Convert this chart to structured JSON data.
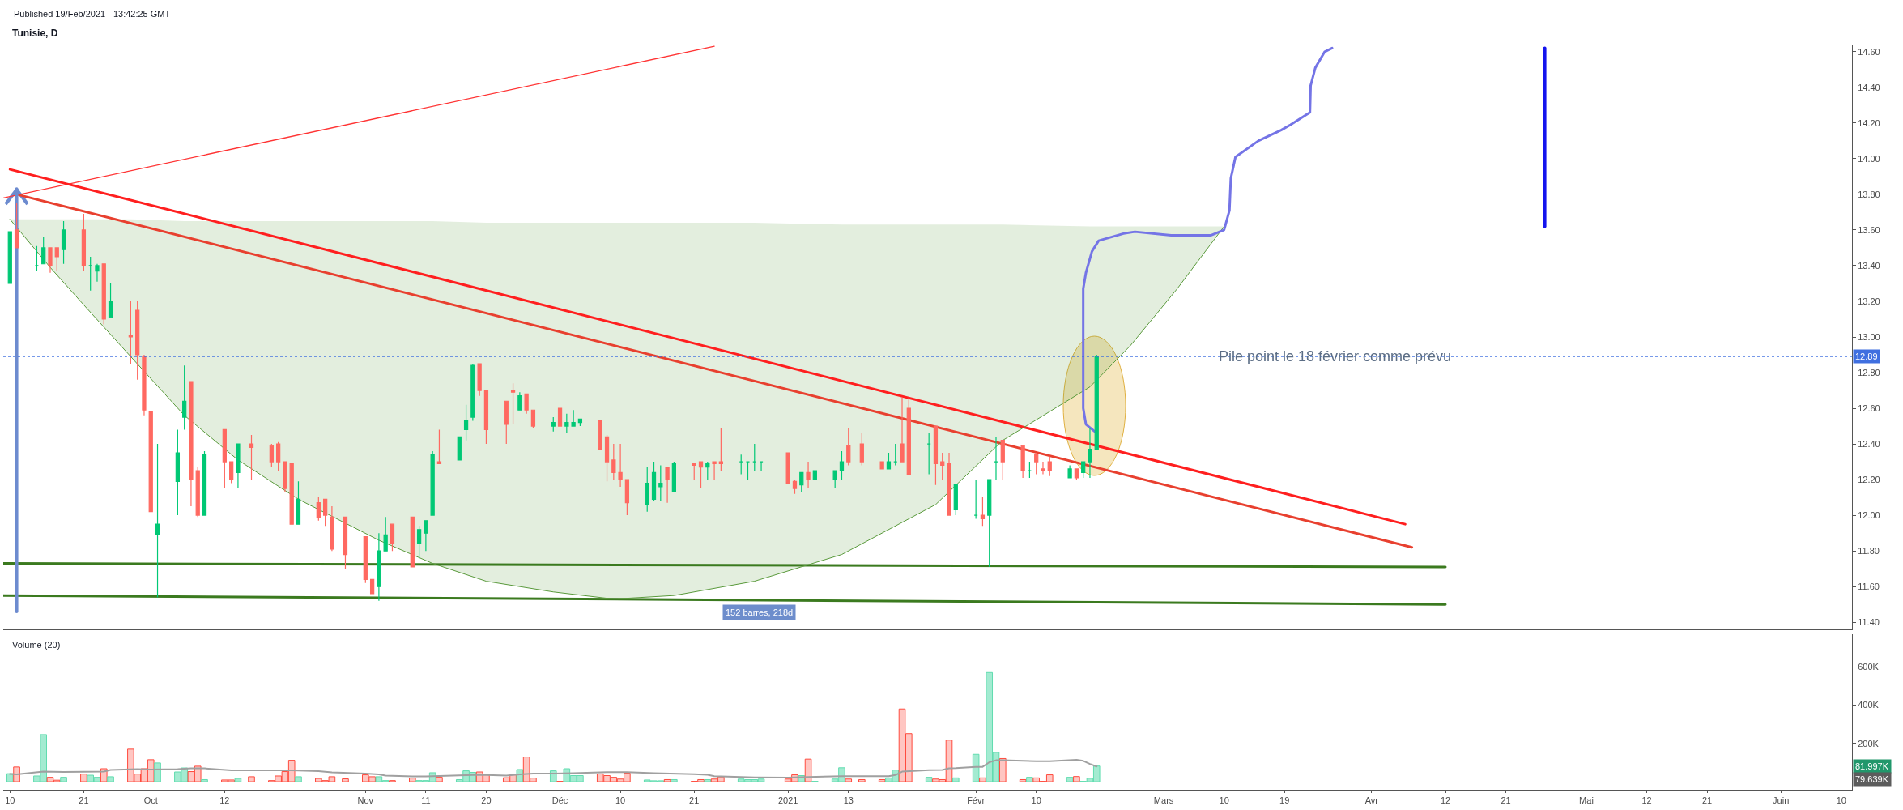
{
  "chart_data": [
    {
      "type": "candlestick",
      "title": "Tunisie, D",
      "x": [
        "2020-09-10",
        "2020-09-11",
        "2020-09-14",
        "2020-09-15",
        "2020-09-16",
        "2020-09-17",
        "2020-09-18",
        "2020-09-21",
        "2020-09-22",
        "2020-09-23",
        "2020-09-24",
        "2020-09-25",
        "2020-09-28",
        "2020-09-29",
        "2020-09-30",
        "2020-10-01",
        "2020-10-02",
        "2020-10-05",
        "2020-10-06",
        "2020-10-07",
        "2020-10-08",
        "2020-10-09",
        "2020-10-12",
        "2020-10-13",
        "2020-10-14",
        "2020-10-16",
        "2020-10-19",
        "2020-10-20",
        "2020-10-21",
        "2020-10-22",
        "2020-10-23",
        "2020-10-26",
        "2020-10-27",
        "2020-10-28",
        "2020-10-30",
        "2020-11-02",
        "2020-11-03",
        "2020-11-04",
        "2020-11-05",
        "2020-11-06",
        "2020-11-09",
        "2020-11-10",
        "2020-11-11",
        "2020-11-12",
        "2020-11-13",
        "2020-11-16",
        "2020-11-17",
        "2020-11-18",
        "2020-11-19",
        "2020-11-20",
        "2020-11-23",
        "2020-11-24",
        "2020-11-25",
        "2020-11-26",
        "2020-11-27",
        "2020-11-30",
        "2020-12-01",
        "2020-12-02",
        "2020-12-03",
        "2020-12-04",
        "2020-12-07",
        "2020-12-08",
        "2020-12-09",
        "2020-12-10",
        "2020-12-11",
        "2020-12-14",
        "2020-12-15",
        "2020-12-16",
        "2020-12-17",
        "2020-12-18",
        "2020-12-21",
        "2020-12-22",
        "2020-12-23",
        "2020-12-24",
        "2020-12-25",
        "2020-12-28",
        "2020-12-29",
        "2020-12-30",
        "2020-12-31",
        "2021-01-04",
        "2021-01-05",
        "2021-01-06",
        "2021-01-07",
        "2021-01-08",
        "2021-01-11",
        "2021-01-12",
        "2021-01-13",
        "2021-01-15",
        "2021-01-18",
        "2021-01-19",
        "2021-01-20",
        "2021-01-21",
        "2021-01-22",
        "2021-01-25",
        "2021-01-26",
        "2021-01-27",
        "2021-01-28",
        "2021-01-29",
        "2021-02-01",
        "2021-02-02",
        "2021-02-03",
        "2021-02-04",
        "2021-02-05",
        "2021-02-08",
        "2021-02-09",
        "2021-02-10",
        "2021-02-11",
        "2021-02-12",
        "2021-02-15",
        "2021-02-16",
        "2021-02-17",
        "2021-02-18",
        "2021-02-19"
      ],
      "ohlc": [
        [
          13.3,
          13.59,
          13.3,
          13.59
        ],
        [
          13.6,
          13.75,
          13.5,
          13.5
        ],
        [
          13.4,
          13.51,
          13.37,
          13.4
        ],
        [
          13.41,
          13.56,
          13.41,
          13.5
        ],
        [
          13.5,
          13.5,
          13.36,
          13.4
        ],
        [
          13.5,
          13.5,
          13.37,
          13.45
        ],
        [
          13.49,
          13.65,
          13.41,
          13.6
        ],
        [
          13.6,
          13.69,
          13.37,
          13.4
        ],
        [
          13.4,
          13.45,
          13.26,
          13.4
        ],
        [
          13.37,
          13.41,
          13.31,
          13.4
        ],
        [
          13.41,
          13.41,
          13.07,
          13.1
        ],
        [
          13.11,
          13.3,
          13.11,
          13.2
        ],
        [
          13.01,
          13.2,
          12.85,
          13.0
        ],
        [
          13.15,
          13.2,
          12.76,
          12.9
        ],
        [
          12.89,
          12.9,
          12.56,
          12.59
        ],
        [
          12.58,
          12.58,
          12.02,
          12.02
        ],
        [
          11.89,
          12.4,
          11.54,
          11.95
        ],
        [
          12.19,
          12.48,
          12.0,
          12.35
        ],
        [
          12.55,
          12.84,
          12.48,
          12.64
        ],
        [
          12.75,
          12.75,
          12.05,
          12.2
        ],
        [
          12.25,
          12.27,
          11.99,
          12.0
        ],
        [
          12.0,
          12.36,
          12.0,
          12.34
        ],
        [
          12.48,
          12.48,
          12.15,
          12.3
        ],
        [
          12.3,
          12.3,
          12.18,
          12.2
        ],
        [
          12.24,
          12.4,
          12.15,
          12.4
        ],
        [
          12.4,
          12.45,
          12.2,
          12.38
        ],
        [
          12.39,
          12.4,
          12.27,
          12.3
        ],
        [
          12.4,
          12.41,
          12.25,
          12.3
        ],
        [
          12.3,
          12.3,
          12.13,
          12.15
        ],
        [
          12.29,
          12.29,
          11.95,
          11.95
        ],
        [
          11.95,
          12.19,
          11.95,
          12.09
        ],
        [
          12.07,
          12.1,
          11.97,
          11.99
        ],
        [
          12.09,
          12.09,
          11.94,
          12.0
        ],
        [
          11.99,
          12.05,
          11.8,
          11.81
        ],
        [
          11.99,
          11.99,
          11.7,
          11.78
        ],
        [
          11.88,
          11.88,
          11.62,
          11.64
        ],
        [
          11.64,
          11.64,
          11.56,
          11.56
        ],
        [
          11.6,
          11.9,
          11.52,
          11.8
        ],
        [
          11.8,
          11.99,
          11.8,
          11.89
        ],
        [
          11.95,
          11.95,
          11.8,
          11.84
        ],
        [
          11.99,
          11.99,
          11.71,
          11.71
        ],
        [
          11.84,
          11.94,
          11.76,
          11.92
        ],
        [
          11.9,
          11.97,
          11.8,
          11.97
        ],
        [
          12.0,
          12.36,
          12.0,
          12.34
        ],
        [
          12.3,
          12.48,
          12.29,
          12.29
        ],
        [
          12.31,
          12.44,
          12.31,
          12.44
        ],
        [
          12.48,
          12.62,
          12.42,
          12.53
        ],
        [
          12.55,
          12.85,
          12.53,
          12.84
        ],
        [
          12.85,
          12.85,
          12.67,
          12.7
        ],
        [
          12.7,
          12.7,
          12.4,
          12.48
        ],
        [
          12.64,
          12.64,
          12.4,
          12.51
        ],
        [
          12.7,
          12.74,
          12.51,
          12.69
        ],
        [
          12.59,
          12.69,
          12.59,
          12.67
        ],
        [
          12.68,
          12.68,
          12.57,
          12.59
        ],
        [
          12.59,
          12.59,
          12.49,
          12.5
        ],
        [
          12.5,
          12.55,
          12.47,
          12.52
        ],
        [
          12.6,
          12.6,
          12.5,
          12.5
        ],
        [
          12.5,
          12.57,
          12.46,
          12.52
        ],
        [
          12.5,
          12.59,
          12.5,
          12.52
        ],
        [
          12.52,
          12.54,
          12.5,
          12.54
        ],
        [
          12.53,
          12.53,
          12.37,
          12.37
        ],
        [
          12.44,
          12.45,
          12.19,
          12.3
        ],
        [
          12.31,
          12.4,
          12.2,
          12.24
        ],
        [
          12.24,
          12.4,
          12.16,
          12.2
        ],
        [
          12.2,
          12.2,
          12.0,
          12.07
        ],
        [
          12.06,
          12.27,
          12.02,
          12.18
        ],
        [
          12.09,
          12.3,
          12.08,
          12.24
        ],
        [
          12.16,
          12.28,
          12.08,
          12.18
        ],
        [
          12.27,
          12.27,
          12.07,
          12.2
        ],
        [
          12.13,
          12.3,
          12.13,
          12.29
        ],
        [
          12.29,
          12.29,
          12.2,
          12.28
        ],
        [
          12.3,
          12.3,
          12.15,
          12.27
        ],
        [
          12.27,
          12.3,
          12.2,
          12.29
        ],
        [
          12.3,
          12.3,
          12.2,
          12.29
        ],
        [
          12.3,
          12.49,
          12.25,
          12.29
        ],
        [
          12.3,
          12.34,
          12.23,
          12.3
        ],
        [
          12.3,
          12.3,
          12.2,
          12.3
        ],
        [
          12.3,
          12.4,
          12.25,
          12.3
        ],
        [
          12.3,
          12.3,
          12.25,
          12.3
        ],
        [
          12.35,
          12.35,
          12.18,
          12.18
        ],
        [
          12.19,
          12.2,
          12.12,
          12.15
        ],
        [
          12.17,
          12.24,
          12.13,
          12.24
        ],
        [
          12.24,
          12.3,
          12.15,
          12.2
        ],
        [
          12.2,
          12.25,
          12.2,
          12.25
        ],
        [
          12.2,
          12.25,
          12.15,
          12.25
        ],
        [
          12.25,
          12.36,
          12.2,
          12.3
        ],
        [
          12.39,
          12.49,
          12.28,
          12.3
        ],
        [
          12.4,
          12.46,
          12.28,
          12.3
        ],
        [
          12.3,
          12.3,
          12.26,
          12.26
        ],
        [
          12.26,
          12.35,
          12.26,
          12.3
        ],
        [
          12.3,
          12.4,
          12.28,
          12.3
        ],
        [
          12.4,
          12.66,
          12.3,
          12.3
        ],
        [
          12.6,
          12.66,
          12.23,
          12.23
        ],
        [
          12.4,
          12.46,
          12.23,
          12.4
        ],
        [
          12.5,
          12.5,
          12.17,
          12.29
        ],
        [
          12.3,
          12.35,
          12.2,
          12.28
        ],
        [
          12.29,
          12.35,
          12.0,
          12.0
        ],
        [
          12.03,
          12.17,
          12.0,
          12.17
        ],
        [
          12.0,
          12.2,
          11.98,
          12.0
        ],
        [
          12.0,
          12.1,
          11.94,
          11.98
        ],
        [
          12.0,
          12.2,
          11.71,
          12.2
        ],
        [
          12.3,
          12.44,
          12.2,
          12.3
        ],
        [
          12.42,
          12.42,
          12.2,
          12.3
        ],
        [
          12.39,
          12.39,
          12.21,
          12.25
        ],
        [
          12.25,
          12.3,
          12.21,
          12.25
        ],
        [
          12.34,
          12.35,
          12.23,
          12.3
        ],
        [
          12.26,
          12.3,
          12.23,
          12.25
        ],
        [
          12.3,
          12.33,
          12.22,
          12.25
        ],
        [
          12.21,
          12.28,
          12.21,
          12.26
        ],
        [
          12.26,
          12.26,
          12.2,
          12.21
        ],
        [
          12.24,
          12.3,
          12.21,
          12.3
        ],
        [
          12.3,
          12.49,
          12.21,
          12.37
        ],
        [
          12.37,
          12.9,
          12.37,
          12.89
        ]
      ],
      "colors": [
        "#00c875",
        "#ff6961",
        "#00c875",
        "#00c875",
        "#ff6961",
        "#ff6961",
        "#00c875",
        "#ff6961",
        "#00c875",
        "#00c875",
        "#ff6961",
        "#00c875",
        "#ff6961",
        "#ff6961",
        "#ff6961",
        "#ff6961",
        "#00c875",
        "#00c875",
        "#00c875",
        "#ff6961",
        "#ff6961",
        "#00c875",
        "#ff6961",
        "#ff6961",
        "#00c875",
        "#ff6961",
        "#ff6961",
        "#ff6961",
        "#ff6961",
        "#ff6961",
        "#00c875",
        "#ff6961",
        "#ff6961",
        "#ff6961",
        "#ff6961",
        "#ff6961",
        "#ff6961",
        "#00c875",
        "#00c875",
        "#ff6961",
        "#ff6961",
        "#00c875",
        "#00c875",
        "#00c875",
        "#ff6961",
        "#00c875",
        "#00c875",
        "#00c875",
        "#ff6961",
        "#ff6961",
        "#ff6961",
        "#ff6961",
        "#00c875",
        "#ff6961",
        "#ff6961",
        "#00c875",
        "#ff6961",
        "#00c875",
        "#00c875",
        "#00c875",
        "#ff6961",
        "#ff6961",
        "#ff6961",
        "#ff6961",
        "#ff6961",
        "#00c875",
        "#00c875",
        "#00c875",
        "#ff6961",
        "#00c875",
        "#ff6961",
        "#ff6961",
        "#00c875",
        "#ff6961",
        "#ff6961",
        "#00c875",
        "#00c875",
        "#00c875",
        "#00c875",
        "#ff6961",
        "#ff6961",
        "#00c875",
        "#ff6961",
        "#00c875",
        "#00c875",
        "#00c875",
        "#ff6961",
        "#ff6961",
        "#ff6961",
        "#00c875",
        "#00c875",
        "#ff6961",
        "#ff6961",
        "#00c875",
        "#ff6961",
        "#ff6961",
        "#ff6961",
        "#00c875",
        "#00c875",
        "#ff6961",
        "#00c875",
        "#00c875",
        "#ff6961",
        "#ff6961",
        "#00c875",
        "#ff6961",
        "#ff6961",
        "#ff6961",
        "#00c875",
        "#ff6961",
        "#00c875",
        "#00c875",
        "#00c875"
      ],
      "series": [
        {
          "type": "line",
          "color": "#ff3333",
          "x": [
            "2020-09-09",
            "2020-12-24"
          ],
          "values": [
            13.78,
            14.63
          ]
        },
        {
          "type": "line",
          "color": "#ff1f1f",
          "x": [
            "2020-09-10",
            "2021-04-06"
          ],
          "values": [
            13.94,
            11.95
          ]
        },
        {
          "type": "line",
          "color": "#e8402f",
          "x": [
            "2020-09-11",
            "2021-04-07"
          ],
          "values": [
            13.8,
            11.82
          ]
        },
        {
          "type": "line",
          "color": "#3b7a1f",
          "x": [
            "2020-09-09",
            "2021-04-12"
          ],
          "values": [
            11.73,
            11.71
          ]
        },
        {
          "type": "line",
          "color": "#3b7a1f",
          "x": [
            "2020-09-09",
            "2021-04-12"
          ],
          "values": [
            11.55,
            11.5
          ]
        },
        {
          "type": "line",
          "color": "#5a9a3c",
          "x": [
            "2020-09-10",
            "2020-09-16",
            "2020-09-21",
            "2020-09-28",
            "2020-10-06",
            "2020-10-14",
            "2020-10-23",
            "2020-11-04",
            "2020-11-12",
            "2020-11-20",
            "2020-11-30",
            "2020-12-09",
            "2020-12-18",
            "2020-12-30",
            "2021-01-12",
            "2021-01-26",
            "2021-02-05",
            "2021-02-18",
            "2021-02-24",
            "2021-03-03",
            "2021-03-10"
          ],
          "values": [
            13.66,
            13.39,
            13.18,
            12.89,
            12.56,
            12.31,
            12.09,
            11.86,
            11.73,
            11.63,
            11.57,
            11.53,
            11.55,
            11.63,
            11.78,
            12.06,
            12.42,
            12.72,
            12.95,
            13.27,
            13.62
          ],
          "lower": [
            13.66,
            13.39,
            13.18,
            12.89,
            12.56,
            12.31,
            12.09,
            11.86,
            11.73,
            11.63,
            11.57,
            11.53,
            11.55,
            11.63,
            11.78,
            12.06,
            12.42,
            12.72,
            12.95,
            13.27,
            13.62
          ],
          "upper": [
            13.66,
            13.66,
            13.66,
            13.66,
            13.65,
            13.65,
            13.65,
            13.65,
            13.65,
            13.64,
            13.64,
            13.64,
            13.64,
            13.64,
            13.63,
            13.63,
            13.63,
            13.62,
            13.62,
            13.62,
            13.62
          ]
        },
        {
          "type": "line",
          "color": "#7474e6",
          "x": [
            "2021-02-18T16:48",
            "2021-02-17T09:36",
            "2021-02-17",
            "2021-02-17",
            "2021-02-17T09:36",
            "2021-02-18T07:12",
            "2021-02-19T07:12",
            "2021-02-23",
            "2021-02-24T16:48",
            "2021-03-02T02:24",
            "2021-03-08",
            "2021-03-10",
            "2021-03-10T19:12",
            "2021-03-11",
            "2021-03-11T16:48",
            "2021-03-15T02:24",
            "2021-03-18T12:00",
            "2021-03-19T21:36",
            "2021-03-22T19:12",
            "2021-03-22T21:36",
            "2021-03-23T14:24",
            "2021-03-25",
            "2021-03-26T02:24"
          ],
          "values": [
            12.47,
            12.51,
            12.6,
            13.27,
            13.36,
            13.48,
            13.54,
            13.58,
            13.59,
            13.57,
            13.57,
            13.6,
            13.71,
            13.89,
            14.01,
            14.1,
            14.16,
            14.19,
            14.26,
            14.41,
            14.51,
            14.6,
            14.62
          ]
        },
        {
          "type": "line",
          "color": "#1414ee",
          "x": [
            "2021-04-26T19:12",
            "2021-04-26T19:12"
          ],
          "values": [
            13.62,
            14.62
          ]
        },
        {
          "type": "line",
          "color": "#6d8bcf",
          "x": [
            "2020-09-11",
            "2020-09-11"
          ],
          "values": [
            11.46,
            13.83
          ]
        }
      ],
      "xlim": [
        "2020-09-09",
        "2021-06-11T14:24"
      ],
      "ylim": [
        11.36,
        14.64
      ],
      "yticks": [
        {
          "value": 11.4,
          "label": "11.40"
        },
        {
          "value": 11.6,
          "label": "11.60"
        },
        {
          "value": 11.8,
          "label": "11.80"
        },
        {
          "value": 12,
          "label": "12.00"
        },
        {
          "value": 12.2,
          "label": "12.20"
        },
        {
          "value": 12.4,
          "label": "12.40"
        },
        {
          "value": 12.6,
          "label": "12.60"
        },
        {
          "value": 12.8,
          "label": "12.80"
        },
        {
          "value": 13,
          "label": "13.00"
        },
        {
          "value": 13.2,
          "label": "13.20"
        },
        {
          "value": 13.4,
          "label": "13.40"
        },
        {
          "value": 13.6,
          "label": "13.60"
        },
        {
          "value": 13.8,
          "label": "13.80"
        },
        {
          "value": 14,
          "label": "14.00"
        },
        {
          "value": 14.2,
          "label": "14.20"
        },
        {
          "value": 14.4,
          "label": "14.40"
        },
        {
          "value": 14.6,
          "label": "14.60"
        }
      ],
      "tick_labels": "y",
      "ref_lines": [
        {
          "axis": "y",
          "value": 12.89,
          "label": "12.89",
          "color": "#3f6fe0",
          "line_style": "dotted"
        }
      ],
      "annotations": [
        "Published 19/Feb/2021 - 13:42:25 GMT",
        "152 barres, 218d",
        {
          "text": "Pile point le 18 février comme prévu",
          "x": "2021-03-26T12:00",
          "y": 12.89
        }
      ]
    },
    {
      "type": "bar",
      "title": "Volume (20)",
      "x": [
        "2020-09-10",
        "2020-09-11",
        "2020-09-14",
        "2020-09-15",
        "2020-09-16",
        "2020-09-17",
        "2020-09-18",
        "2020-09-21",
        "2020-09-22",
        "2020-09-23",
        "2020-09-24",
        "2020-09-25",
        "2020-09-28",
        "2020-09-29",
        "2020-09-30",
        "2020-10-01",
        "2020-10-02",
        "2020-10-05",
        "2020-10-06",
        "2020-10-07",
        "2020-10-08",
        "2020-10-09",
        "2020-10-12",
        "2020-10-13",
        "2020-10-14",
        "2020-10-16",
        "2020-10-19",
        "2020-10-20",
        "2020-10-21",
        "2020-10-22",
        "2020-10-23",
        "2020-10-26",
        "2020-10-27",
        "2020-10-28",
        "2020-10-30",
        "2020-11-02",
        "2020-11-03",
        "2020-11-04",
        "2020-11-05",
        "2020-11-06",
        "2020-11-09",
        "2020-11-10",
        "2020-11-11",
        "2020-11-12",
        "2020-11-13",
        "2020-11-16",
        "2020-11-17",
        "2020-11-18",
        "2020-11-19",
        "2020-11-20",
        "2020-11-23",
        "2020-11-24",
        "2020-11-25",
        "2020-11-26",
        "2020-11-27",
        "2020-11-30",
        "2020-12-01",
        "2020-12-02",
        "2020-12-03",
        "2020-12-04",
        "2020-12-07",
        "2020-12-08",
        "2020-12-09",
        "2020-12-10",
        "2020-12-11",
        "2020-12-14",
        "2020-12-15",
        "2020-12-16",
        "2020-12-17",
        "2020-12-18",
        "2020-12-21",
        "2020-12-22",
        "2020-12-23",
        "2020-12-24",
        "2020-12-25",
        "2020-12-28",
        "2020-12-29",
        "2020-12-30",
        "2020-12-31",
        "2021-01-04",
        "2021-01-05",
        "2021-01-06",
        "2021-01-07",
        "2021-01-08",
        "2021-01-11",
        "2021-01-12",
        "2021-01-13",
        "2021-01-15",
        "2021-01-18",
        "2021-01-19",
        "2021-01-20",
        "2021-01-21",
        "2021-01-22",
        "2021-01-25",
        "2021-01-26",
        "2021-01-27",
        "2021-01-28",
        "2021-01-29",
        "2021-02-01",
        "2021-02-02",
        "2021-02-03",
        "2021-02-04",
        "2021-02-05",
        "2021-02-08",
        "2021-02-09",
        "2021-02-10",
        "2021-02-11",
        "2021-02-12",
        "2021-02-15",
        "2021-02-16",
        "2021-02-17",
        "2021-02-18",
        "2021-02-19"
      ],
      "series": [
        {
          "type": "bar",
          "values": [
            42000,
            77000,
            30000,
            246000,
            23000,
            8000,
            23000,
            40000,
            34000,
            23000,
            68000,
            26000,
            170000,
            40000,
            68000,
            115000,
            98000,
            51000,
            72000,
            53000,
            81000,
            11000,
            9000,
            9000,
            17000,
            26000,
            6000,
            30000,
            53000,
            112000,
            26000,
            17000,
            6000,
            26000,
            15000,
            36000,
            26000,
            26000,
            6000,
            6000,
            19000,
            6000,
            6000,
            47000,
            23000,
            11000,
            57000,
            49000,
            51000,
            38000,
            21000,
            36000,
            64000,
            129000,
            19000,
            57000,
            2000,
            68000,
            32000,
            32000,
            41000,
            32000,
            23000,
            14000,
            45000,
            9000,
            5000,
            5000,
            11000,
            11000,
            2000,
            11000,
            11000,
            14000,
            25000,
            14000,
            11000,
            11000,
            14000,
            14000,
            36000,
            32000,
            118000,
            2000,
            14000,
            73000,
            14000,
            11000,
            11000,
            20000,
            61000,
            380000,
            251000,
            23000,
            14000,
            11000,
            217000,
            20000,
            143000,
            20000,
            570000,
            153000,
            121000,
            11000,
            23000,
            20000,
            2000,
            36000,
            23000,
            27000,
            2000,
            18000,
            81997
          ],
          "colors": [
            "#a3ebd1",
            "#ffc6c2",
            "#a3ebd1",
            "#a3ebd1",
            "#ffc6c2",
            "#ffc6c2",
            "#a3ebd1",
            "#ffc6c2",
            "#a3ebd1",
            "#a3ebd1",
            "#ffc6c2",
            "#a3ebd1",
            "#ffc6c2",
            "#ffc6c2",
            "#ffc6c2",
            "#ffc6c2",
            "#a3ebd1",
            "#a3ebd1",
            "#a3ebd1",
            "#ffc6c2",
            "#ffc6c2",
            "#a3ebd1",
            "#ffc6c2",
            "#ffc6c2",
            "#a3ebd1",
            "#ffc6c2",
            "#ffc6c2",
            "#ffc6c2",
            "#ffc6c2",
            "#ffc6c2",
            "#a3ebd1",
            "#ffc6c2",
            "#ffc6c2",
            "#ffc6c2",
            "#ffc6c2",
            "#ffc6c2",
            "#ffc6c2",
            "#a3ebd1",
            "#a3ebd1",
            "#ffc6c2",
            "#ffc6c2",
            "#a3ebd1",
            "#a3ebd1",
            "#a3ebd1",
            "#ffc6c2",
            "#a3ebd1",
            "#a3ebd1",
            "#a3ebd1",
            "#ffc6c2",
            "#ffc6c2",
            "#ffc6c2",
            "#ffc6c2",
            "#a3ebd1",
            "#ffc6c2",
            "#ffc6c2",
            "#a3ebd1",
            "#ffc6c2",
            "#a3ebd1",
            "#a3ebd1",
            "#a3ebd1",
            "#ffc6c2",
            "#ffc6c2",
            "#ffc6c2",
            "#ffc6c2",
            "#ffc6c2",
            "#a3ebd1",
            "#a3ebd1",
            "#a3ebd1",
            "#ffc6c2",
            "#a3ebd1",
            "#ffc6c2",
            "#ffc6c2",
            "#a3ebd1",
            "#ffc6c2",
            "#ffc6c2",
            "#a3ebd1",
            "#a3ebd1",
            "#a3ebd1",
            "#a3ebd1",
            "#ffc6c2",
            "#ffc6c2",
            "#a3ebd1",
            "#ffc6c2",
            "#a3ebd1",
            "#a3ebd1",
            "#a3ebd1",
            "#ffc6c2",
            "#ffc6c2",
            "#ffc6c2",
            "#a3ebd1",
            "#a3ebd1",
            "#ffc6c2",
            "#ffc6c2",
            "#a3ebd1",
            "#ffc6c2",
            "#ffc6c2",
            "#ffc6c2",
            "#a3ebd1",
            "#a3ebd1",
            "#ffc6c2",
            "#a3ebd1",
            "#a3ebd1",
            "#ffc6c2",
            "#ffc6c2",
            "#a3ebd1",
            "#ffc6c2",
            "#ffc6c2",
            "#ffc6c2",
            "#a3ebd1",
            "#ffc6c2",
            "#a3ebd1",
            "#a3ebd1",
            "#a3ebd1"
          ]
        },
        {
          "type": "line",
          "color": "#a0a0a0",
          "x": [
            "2020-09-10",
            "2020-09-11",
            "2020-09-15",
            "2020-09-18",
            "2020-09-24",
            "2020-09-25",
            "2020-09-29",
            "2020-10-01",
            "2020-10-05",
            "2020-10-07",
            "2020-10-09",
            "2020-10-13",
            "2020-10-22",
            "2020-10-26",
            "2020-10-28",
            "2020-11-02",
            "2020-11-04",
            "2020-11-05",
            "2020-11-09",
            "2020-11-11",
            "2020-11-13",
            "2020-11-17",
            "2020-11-19",
            "2020-11-23",
            "2020-11-25",
            "2020-11-27",
            "2020-11-30",
            "2020-12-03",
            "2020-12-08",
            "2020-12-11",
            "2020-12-15",
            "2020-12-21",
            "2020-12-23",
            "2020-12-24",
            "2020-12-30",
            "2021-01-04",
            "2021-01-05",
            "2021-01-07",
            "2021-01-12",
            "2021-01-19",
            "2021-01-20",
            "2021-01-21",
            "2021-01-25",
            "2021-01-27",
            "2021-01-28",
            "2021-01-29",
            "2021-02-01",
            "2021-02-02",
            "2021-02-03",
            "2021-02-04",
            "2021-02-05",
            "2021-02-10",
            "2021-02-12",
            "2021-02-16",
            "2021-02-17",
            "2021-02-18",
            "2021-02-19"
          ],
          "values": [
            40000,
            38000,
            53000,
            51000,
            53000,
            62000,
            66000,
            64000,
            66000,
            70000,
            70000,
            59000,
            59000,
            55000,
            49000,
            43000,
            38000,
            32000,
            28000,
            28000,
            30000,
            34000,
            36000,
            32000,
            38000,
            43000,
            43000,
            45000,
            50000,
            50000,
            45000,
            39000,
            36000,
            29000,
            23000,
            21000,
            23000,
            25000,
            29000,
            29000,
            35000,
            53000,
            61000,
            62000,
            70000,
            71000,
            78000,
            78000,
            102000,
            112000,
            112000,
            107000,
            107000,
            114000,
            109000,
            93000,
            79639
          ]
        }
      ],
      "xlim": [
        "2020-09-09",
        "2021-06-11T14:24"
      ],
      "xticks": [
        {
          "value": "2020-09-10",
          "label": "10"
        },
        {
          "value": "2020-09-21",
          "label": "21"
        },
        {
          "value": "2020-10-01",
          "label": "Oct"
        },
        {
          "value": "2020-10-12",
          "label": "12"
        },
        {
          "value": "2020-11-02",
          "label": "Nov"
        },
        {
          "value": "2020-11-11",
          "label": "11"
        },
        {
          "value": "2020-11-20",
          "label": "20"
        },
        {
          "value": "2020-12-01",
          "label": "Déc"
        },
        {
          "value": "2020-12-10",
          "label": "10"
        },
        {
          "value": "2020-12-21",
          "label": "21"
        },
        {
          "value": "2021-01-04",
          "label": "2021"
        },
        {
          "value": "2021-01-13",
          "label": "13"
        },
        {
          "value": "2021-02-01",
          "label": "Févr"
        },
        {
          "value": "2021-02-10",
          "label": "10"
        },
        {
          "value": "2021-03-01",
          "label": "Mars"
        },
        {
          "value": "2021-03-10",
          "label": "10"
        },
        {
          "value": "2021-03-19",
          "label": "19"
        },
        {
          "value": "2021-04-01",
          "label": "Avr"
        },
        {
          "value": "2021-04-12",
          "label": "12"
        },
        {
          "value": "2021-04-21",
          "label": "21"
        },
        {
          "value": "2021-05-03",
          "label": "Mai"
        },
        {
          "value": "2021-05-12",
          "label": "12"
        },
        {
          "value": "2021-05-21",
          "label": "21"
        },
        {
          "value": "2021-06-01",
          "label": "Juin"
        },
        {
          "value": "2021-06-10",
          "label": "10"
        }
      ],
      "ylim": [
        -42000,
        770000
      ],
      "yticks": [
        {
          "value": 200000,
          "label": "200K"
        },
        {
          "value": 400000,
          "label": "400K"
        },
        {
          "value": 600000,
          "label": "600K"
        }
      ],
      "annotations": [
        "81.997K",
        "79.639K"
      ]
    }
  ]
}
